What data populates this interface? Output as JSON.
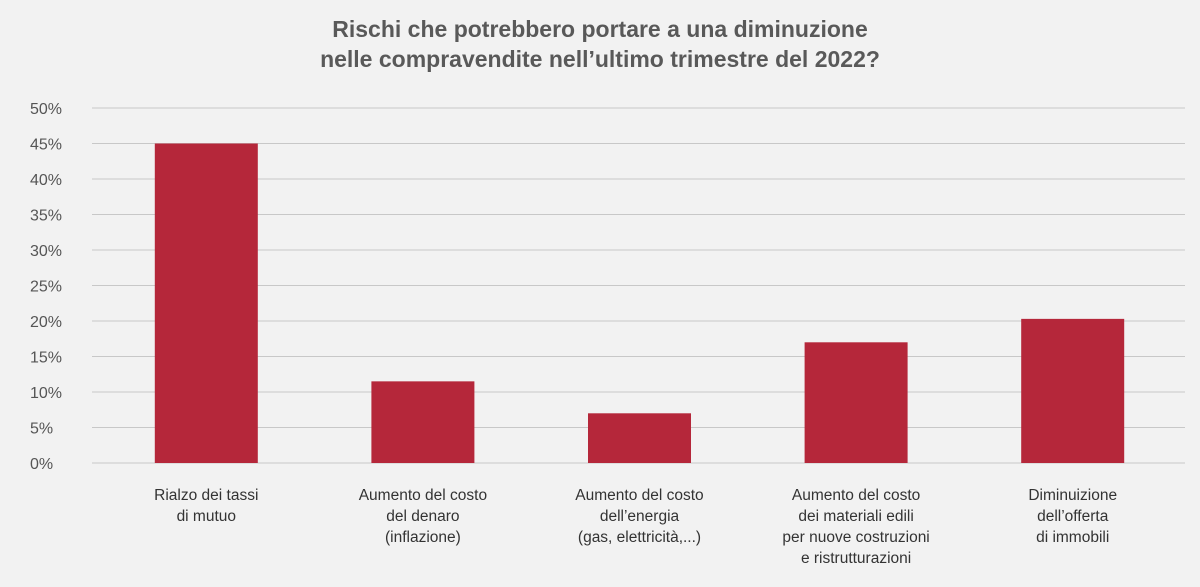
{
  "chart_data": {
    "type": "bar",
    "title_lines": [
      "Rischi che potrebbero portare a una diminuzione",
      "nelle compravendite nell’ultimo trimestre del 2022?"
    ],
    "categories": [
      [
        "Rialzo dei tassi",
        "di mutuo"
      ],
      [
        "Aumento del costo",
        "del denaro",
        "(inflazione)"
      ],
      [
        "Aumento del costo",
        "dell’energia",
        "(gas, elettricità,...)"
      ],
      [
        "Aumento del costo",
        "dei materiali edili",
        "per nuove costruzioni",
        "e ristrutturazioni"
      ],
      [
        "Diminuizione",
        "dell’offerta",
        "di immobili"
      ]
    ],
    "values": [
      45,
      11.5,
      7,
      17,
      20.3
    ],
    "ylim": [
      0,
      50
    ],
    "yticks": [
      0,
      5,
      10,
      15,
      20,
      25,
      30,
      35,
      40,
      45,
      50
    ],
    "ytick_labels": [
      "0%",
      "5%",
      "10%",
      "15%",
      "20%",
      "25%",
      "30%",
      "35%",
      "40%",
      "45%",
      "50%"
    ],
    "grid": true,
    "bar_color": "#b5273a"
  }
}
